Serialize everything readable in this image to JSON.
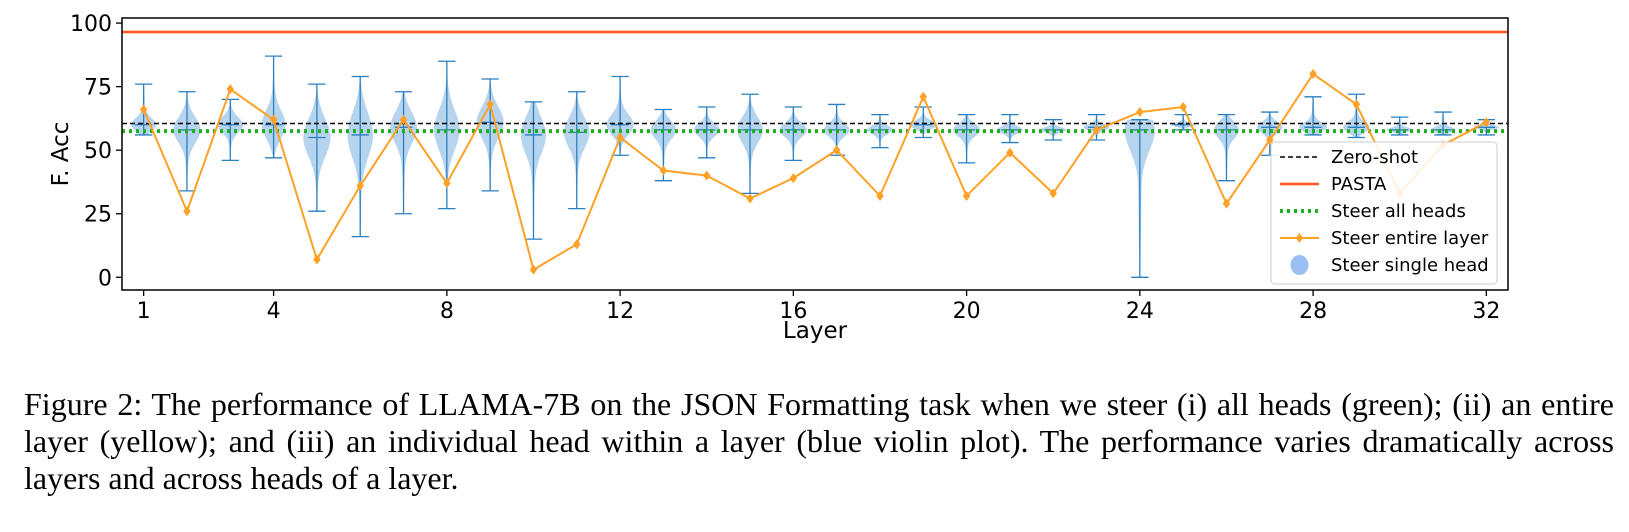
{
  "chart_data": {
    "type": "violin+line",
    "xlabel": "Layer",
    "ylabel": "F. Acc",
    "xlim": [
      0.5,
      32.5
    ],
    "ylim": [
      -5,
      102
    ],
    "xticks": [
      1,
      4,
      8,
      12,
      16,
      20,
      24,
      28,
      32
    ],
    "yticks": [
      0,
      25,
      50,
      75,
      100
    ],
    "legend_position": "lower right",
    "series": [
      {
        "name": "Zero-shot",
        "kind": "hline",
        "y": 60.5,
        "color": "#000000",
        "style": "dashed"
      },
      {
        "name": "PASTA",
        "kind": "hline",
        "y": 96.5,
        "color": "#ff5722",
        "style": "solid"
      },
      {
        "name": "Steer all heads",
        "kind": "hline",
        "y": 57.5,
        "color": "#1fae1f",
        "style": "dotted"
      },
      {
        "name": "Steer entire layer",
        "kind": "line",
        "color": "#ffa126",
        "x": [
          1,
          2,
          3,
          4,
          5,
          6,
          7,
          8,
          9,
          10,
          11,
          12,
          13,
          14,
          15,
          16,
          17,
          18,
          19,
          20,
          21,
          22,
          23,
          24,
          25,
          26,
          27,
          28,
          29,
          30,
          31,
          32
        ],
        "y": [
          66,
          26,
          74,
          62,
          7,
          36,
          62,
          37,
          68,
          3,
          13,
          55,
          42,
          40,
          31,
          39,
          50,
          32,
          71,
          32,
          49,
          33,
          58,
          65,
          67,
          29,
          54,
          80,
          68,
          33,
          52,
          61
        ]
      },
      {
        "name": "Steer single head",
        "kind": "violin",
        "color": "#9fc5e8",
        "x": [
          1,
          2,
          3,
          4,
          5,
          6,
          7,
          8,
          9,
          10,
          11,
          12,
          13,
          14,
          15,
          16,
          17,
          18,
          19,
          20,
          21,
          22,
          23,
          24,
          25,
          26,
          27,
          28,
          29,
          30,
          31,
          32
        ],
        "min": [
          56,
          34,
          46,
          47,
          26,
          16,
          25,
          27,
          34,
          15,
          27,
          48,
          38,
          47,
          33,
          46,
          48,
          51,
          55,
          45,
          53,
          54,
          54,
          0,
          58,
          38,
          48,
          56,
          55,
          56,
          56,
          56
        ],
        "max": [
          76,
          73,
          70,
          87,
          76,
          79,
          73,
          85,
          78,
          69,
          73,
          79,
          66,
          67,
          72,
          67,
          68,
          64,
          67,
          64,
          64,
          62,
          64,
          62,
          64,
          64,
          65,
          71,
          72,
          63,
          65,
          62
        ],
        "median": [
          60,
          58,
          60,
          60,
          55,
          56,
          59,
          58,
          61,
          56,
          57,
          60,
          58,
          58,
          58,
          58,
          58,
          58,
          60,
          58,
          58,
          58,
          59,
          58,
          60,
          58,
          59,
          59,
          59,
          58,
          58,
          59
        ],
        "width": [
          0.32,
          0.34,
          0.32,
          0.3,
          0.34,
          0.32,
          0.34,
          0.32,
          0.34,
          0.32,
          0.32,
          0.34,
          0.32,
          0.32,
          0.32,
          0.34,
          0.32,
          0.32,
          0.36,
          0.34,
          0.32,
          0.32,
          0.32,
          0.4,
          0.32,
          0.32,
          0.32,
          0.36,
          0.34,
          0.32,
          0.32,
          0.32
        ],
        "skew": [
          0.55,
          0.5,
          0.5,
          0.62,
          0.7,
          0.6,
          0.5,
          0.55,
          0.6,
          0.55,
          0.5,
          0.5,
          0.5,
          0.5,
          0.5,
          0.55,
          0.5,
          0.5,
          0.5,
          0.55,
          0.5,
          0.5,
          0.5,
          0.55,
          0.5,
          0.5,
          0.5,
          0.5,
          0.5,
          0.5,
          0.5,
          0.5
        ]
      }
    ]
  },
  "caption": "Figure 2: The performance of LLAMA-7B on the JSON Formatting task when we steer (i) all heads (green); (ii) an entire layer (yellow); and (iii) an individual head within a layer (blue violin plot). The performance varies dramatically across layers and across heads of a layer."
}
